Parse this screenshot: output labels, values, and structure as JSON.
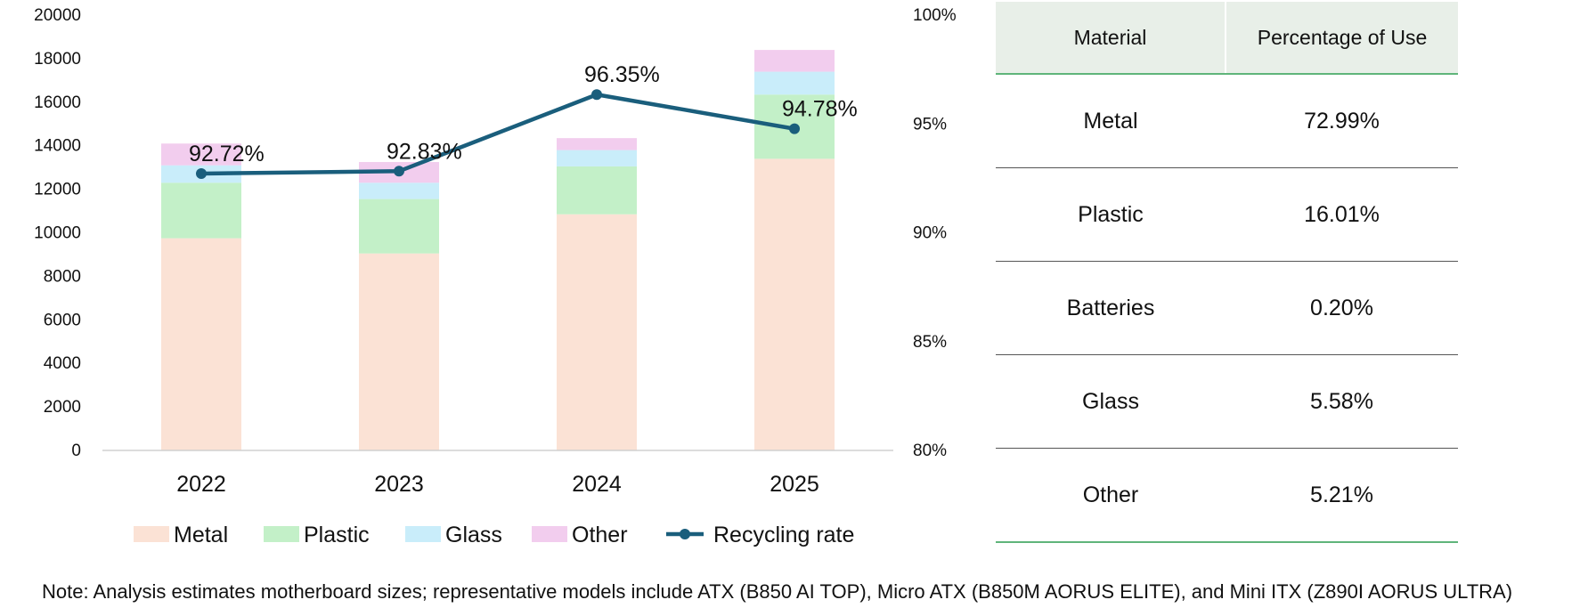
{
  "chart_data": {
    "type": "bar",
    "stacked": true,
    "categories": [
      "2022",
      "2023",
      "2024",
      "2025"
    ],
    "series": [
      {
        "name": "Metal",
        "color": "#fbe2d5",
        "values": [
          9750,
          9050,
          10850,
          13400
        ]
      },
      {
        "name": "Plastic",
        "color": "#c3f0c8",
        "values": [
          2550,
          2500,
          2200,
          2950
        ]
      },
      {
        "name": "Glass",
        "color": "#c9edfa",
        "values": [
          800,
          750,
          750,
          1050
        ]
      },
      {
        "name": "Other",
        "color": "#f2cdee",
        "values": [
          1000,
          950,
          550,
          1000
        ]
      }
    ],
    "line": {
      "name": "Recycling rate",
      "color": "#1a5e7c",
      "values": [
        92.72,
        92.83,
        96.35,
        94.78
      ],
      "labels": [
        "92.72%",
        "92.83%",
        "96.35%",
        "94.78%"
      ]
    },
    "ylim": [
      0,
      20000
    ],
    "yticks": [
      0,
      2000,
      4000,
      6000,
      8000,
      10000,
      12000,
      14000,
      16000,
      18000,
      20000
    ],
    "y2lim": [
      80,
      100
    ],
    "y2ticks": [
      80,
      85,
      90,
      95,
      100
    ],
    "y2tick_labels": [
      "80%",
      "85%",
      "90%",
      "95%",
      "100%"
    ],
    "legend_position": "bottom",
    "grid": false
  },
  "table": {
    "headers": [
      "Material",
      "Percentage of Use"
    ],
    "rows": [
      [
        "Metal",
        "72.99%"
      ],
      [
        "Plastic",
        "16.01%"
      ],
      [
        "Batteries",
        "0.20%"
      ],
      [
        "Glass",
        "5.58%"
      ],
      [
        "Other",
        "5.21%"
      ]
    ]
  },
  "note": "Note: Analysis estimates motherboard sizes; representative models include ATX (B850 AI TOP), Micro ATX (B850M AORUS ELITE), and Mini ITX (Z890I AORUS ULTRA)"
}
